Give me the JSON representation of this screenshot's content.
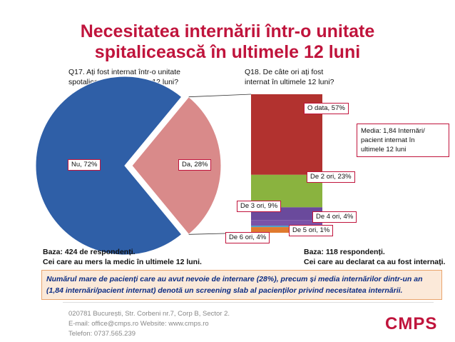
{
  "title_line1": "Necesitatea internării într-o unitate",
  "title_line2": "spitalicească în ultimele 12 luni",
  "q17_line1": "Q17. Ați fost internat într-o unitate",
  "q17_line2": "spotalicească în ultimele 12 luni?",
  "q18_line1": "Q18. De câte ori ați fost",
  "q18_line2": "internat în ultimele 12 luni?",
  "media_line1": "Media: 1,84 Internări/",
  "media_line2": "pacient internat în",
  "media_line3": "ultimele 12 luni",
  "base_left_line1": "Baza: 424 de respondenți.",
  "base_left_line2": "Cei care au mers la medic în ultimele 12 luni.",
  "base_right_line1": "Baza: 118 respondenți.",
  "base_right_line2": "Cei care au declarat ca au fost internați.",
  "conclusion_line1": "Numărul mare de pacienți care au avut nevoie de internare (28%), precum și media internărilor dintr-un an",
  "conclusion_line2": "(1,84 internări/pacient internat) denotă un screening slab al pacienților privind necesitatea internării.",
  "footer_line1": "020781 București, Str. Corbeni nr.7, Corp B, Sector 2.",
  "footer_line2": "E-mail: office@cmps.ro Website: www.cmps.ro",
  "footer_line3": "Telefon: 0737.565.239",
  "brand": "CMPS",
  "colors": {
    "accent": "#c0143c",
    "nu": "#2f5fa7",
    "da": "#d98a8a",
    "o_data": "#b2322f",
    "de2": "#8ab33f",
    "de3": "#6a4a9c",
    "de4": "#7a52a8",
    "de5": "#4a9fc8",
    "de6": "#e07a2e"
  },
  "chart_data": [
    {
      "type": "pie",
      "labels": [
        "Nu",
        "Da"
      ],
      "values": [
        72,
        28
      ],
      "value_labels": [
        "Nu, 72%",
        "Da, 28%"
      ]
    },
    {
      "type": "bar",
      "stacked": true,
      "categories": [
        "O data",
        "De 2 ori",
        "De 3 ori",
        "De 4 ori",
        "De 5 ori",
        "De 6 ori"
      ],
      "values": [
        57,
        23,
        9,
        4,
        1,
        4
      ],
      "value_labels": [
        "O data, 57%",
        "De 2 ori, 23%",
        "De 3 ori, 9%",
        "De 4 ori, 4%",
        "De 5 ori, 1%",
        "De 6 ori, 4%"
      ]
    }
  ]
}
